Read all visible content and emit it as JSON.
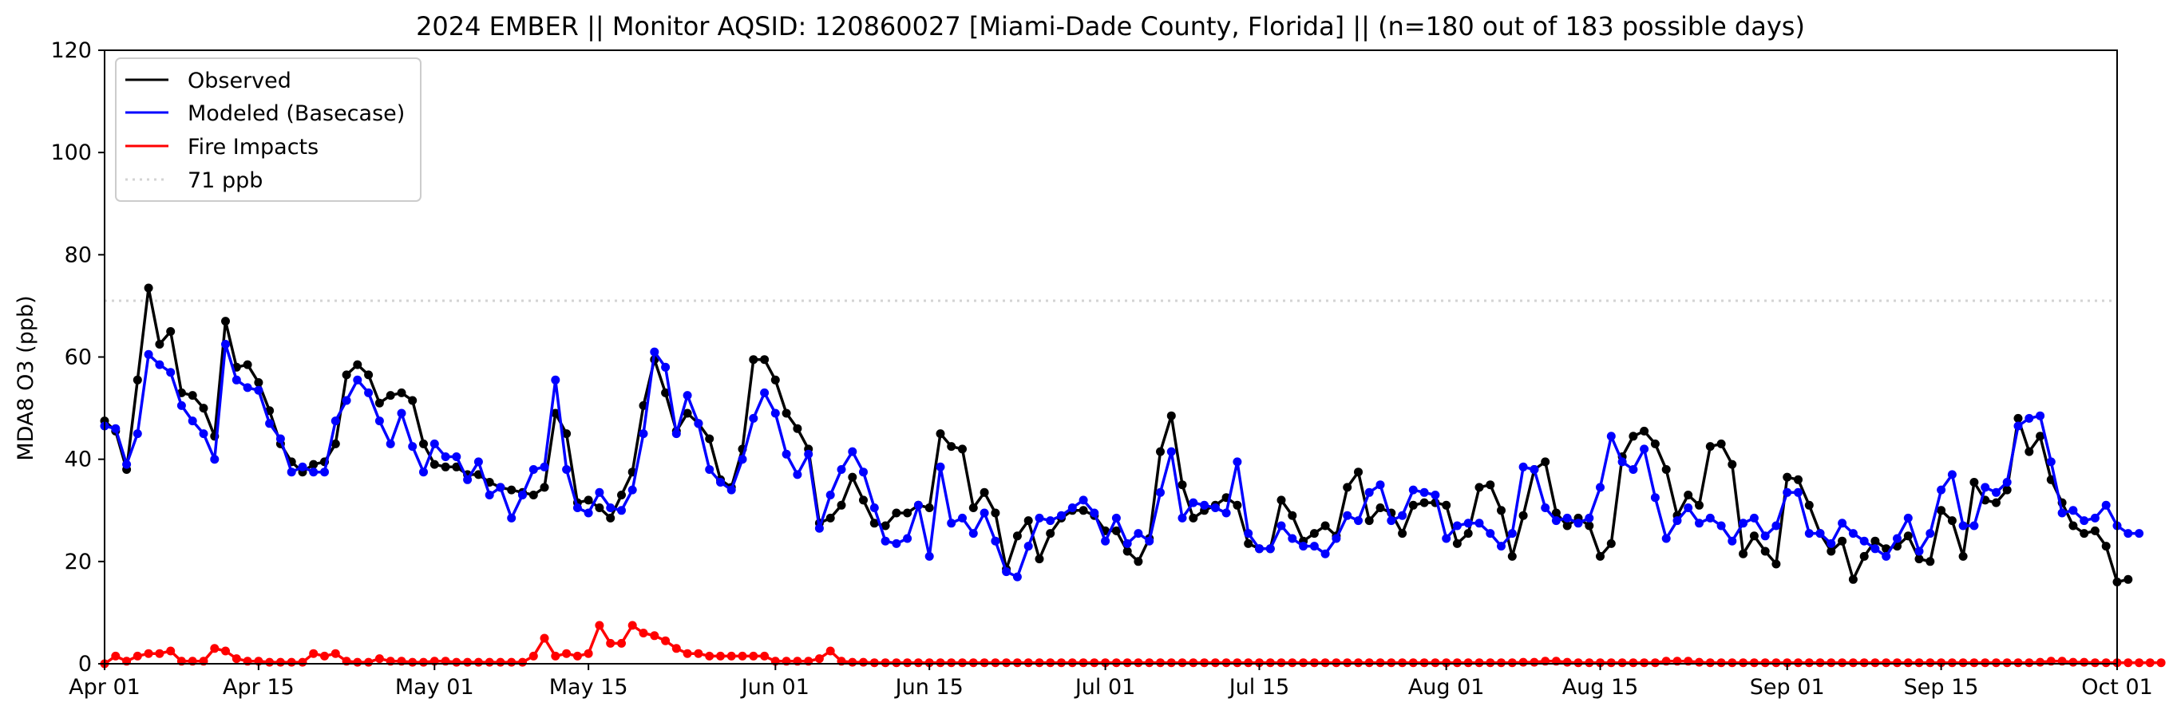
{
  "chart_data": {
    "type": "line",
    "title": "2024 EMBER || Monitor AQSID: 120860027 [Miami-Dade County, Florida] || (n=180 out of 183 possible days)",
    "xlabel": "",
    "ylabel": "MDA8 O3 (ppb)",
    "ylim": [
      0,
      120
    ],
    "xlim": [
      0,
      183
    ],
    "yticks": [
      0,
      20,
      40,
      60,
      80,
      100,
      120
    ],
    "xticks": [
      {
        "day": 0,
        "label": "Apr 01"
      },
      {
        "day": 14,
        "label": "Apr 15"
      },
      {
        "day": 30,
        "label": "May 01"
      },
      {
        "day": 44,
        "label": "May 15"
      },
      {
        "day": 61,
        "label": "Jun 01"
      },
      {
        "day": 75,
        "label": "Jun 15"
      },
      {
        "day": 91,
        "label": "Jul 01"
      },
      {
        "day": 105,
        "label": "Jul 15"
      },
      {
        "day": 122,
        "label": "Aug 01"
      },
      {
        "day": 136,
        "label": "Aug 15"
      },
      {
        "day": 153,
        "label": "Sep 01"
      },
      {
        "day": 167,
        "label": "Sep 15"
      },
      {
        "day": 183,
        "label": "Oct 01"
      }
    ],
    "threshold": {
      "label": "71 ppb",
      "value": 71,
      "color": "#d3d3d3"
    },
    "legend_position": "top-left",
    "series": [
      {
        "name": "Observed",
        "color": "#000000",
        "start_day": 0,
        "values": [
          47.5,
          45.5,
          38,
          55.5,
          73.5,
          62.5,
          65,
          53,
          52.5,
          50,
          44.5,
          67,
          58,
          58.5,
          55,
          49.5,
          43,
          39.5,
          37.5,
          39,
          39.5,
          43,
          56.5,
          58.5,
          56.5,
          51,
          52.5,
          53,
          51.5,
          43,
          39,
          38.5,
          38.5,
          37,
          37,
          35.5,
          34.5,
          34,
          33.5,
          33,
          34.5,
          49,
          45,
          31.5,
          32,
          30.5,
          28.5,
          33,
          37.5,
          50.5,
          59.5,
          53,
          45.5,
          49,
          47,
          44,
          36,
          34.5,
          42,
          59.5,
          59.5,
          55.5,
          49,
          46,
          42,
          27.5,
          28.5,
          31,
          36.5,
          32,
          27.5,
          27,
          29.5,
          29.5,
          31,
          30.5,
          45,
          42.5,
          42,
          30.5,
          33.5,
          29.5,
          18.5,
          25,
          28,
          20.5,
          25.5,
          28.5,
          30,
          30,
          29,
          26,
          26,
          22,
          20,
          24.5,
          41.5,
          48.5,
          35,
          28.5,
          30,
          31,
          32.5,
          31,
          23.5,
          22.5,
          22.5,
          32,
          29,
          24,
          25.5,
          27,
          25,
          34.5,
          37.5,
          28,
          30.5,
          29.5,
          25.5,
          31,
          31.5,
          31.5,
          31,
          23.5,
          25.5,
          34.5,
          35,
          30,
          21,
          29,
          38,
          39.5,
          29.5,
          27,
          28.5,
          27,
          21,
          23.5,
          40.5,
          44.5,
          45.5,
          43,
          38,
          29,
          33,
          31,
          42.5,
          43,
          39,
          21.5,
          25,
          22,
          19.5,
          36.5,
          36,
          31,
          25.5,
          22,
          24,
          16.5,
          21,
          24,
          22.5,
          23,
          25,
          20.5,
          20,
          30,
          28,
          21,
          35.5,
          32,
          31.5,
          34,
          48,
          41.5,
          44.5,
          36,
          31.5,
          27,
          25.5,
          26,
          23,
          16,
          16.5
        ]
      },
      {
        "name": "Modeled (Basecase)",
        "color": "#0000ff",
        "start_day": 0,
        "values": [
          46.5,
          46,
          39,
          45,
          60.5,
          58.5,
          57,
          50.5,
          47.5,
          45,
          40,
          62.5,
          55.5,
          54,
          53.5,
          47,
          44,
          37.5,
          38.5,
          37.5,
          37.5,
          47.5,
          51.5,
          55.5,
          53,
          47.5,
          43,
          49,
          42.5,
          37.5,
          43,
          40.5,
          40.5,
          36,
          39.5,
          33,
          34.5,
          28.5,
          33,
          38,
          38.5,
          55.5,
          38,
          30.5,
          29.5,
          33.5,
          30.5,
          30,
          34,
          45,
          61,
          58,
          45,
          52.5,
          47,
          38,
          35.5,
          34,
          40,
          48,
          53,
          49,
          41,
          37,
          41,
          26.5,
          33,
          38,
          41.5,
          37.5,
          30.5,
          24,
          23.5,
          24.5,
          31,
          21,
          38.5,
          27.5,
          28.5,
          25.5,
          29.5,
          24,
          18,
          17,
          23,
          28.5,
          28,
          29,
          30.5,
          32,
          29.5,
          24,
          28.5,
          23.5,
          25.5,
          24,
          33.5,
          41.5,
          28.5,
          31.5,
          31,
          30.5,
          29.5,
          39.5,
          25.5,
          22.5,
          22.5,
          27,
          24.5,
          23,
          23,
          21.5,
          24.5,
          29,
          28,
          33.5,
          35,
          28,
          29,
          34,
          33.5,
          33,
          24.5,
          27,
          27.5,
          27.5,
          25.5,
          23,
          25.5,
          38.5,
          38,
          30.5,
          28,
          28.5,
          27.5,
          28.5,
          34.5,
          44.5,
          39.5,
          38,
          42,
          32.5,
          24.5,
          28,
          30.5,
          27.5,
          28.5,
          27,
          24,
          27.5,
          28.5,
          25,
          27,
          33.5,
          33.5,
          25.5,
          25.5,
          23.5,
          27.5,
          25.5,
          24,
          22.5,
          21,
          24.5,
          28.5,
          22,
          25.5,
          34,
          37,
          27,
          27,
          34.5,
          33.5,
          35.5,
          46.5,
          48,
          48.5,
          39.5,
          29.5,
          30,
          28,
          28.5,
          31,
          27,
          25.5,
          25.5
        ]
      },
      {
        "name": "Fire Impacts",
        "color": "#ff0000",
        "start_day": 0,
        "values": [
          0,
          1.5,
          0.5,
          1.5,
          2,
          2,
          2.5,
          0.5,
          0.5,
          0.5,
          3,
          2.5,
          1,
          0.5,
          0.5,
          0.3,
          0.3,
          0.3,
          0.3,
          2,
          1.5,
          2,
          0.5,
          0.3,
          0.3,
          1,
          0.5,
          0.5,
          0.3,
          0.3,
          0.5,
          0.5,
          0.3,
          0.3,
          0.3,
          0.3,
          0.3,
          0.3,
          0.3,
          1.5,
          5,
          1.5,
          2,
          1.5,
          2,
          7.5,
          4,
          4,
          7.5,
          6,
          5.5,
          4.5,
          3,
          2,
          2,
          1.5,
          1.5,
          1.5,
          1.5,
          1.5,
          1.5,
          0.5,
          0.5,
          0.5,
          0.5,
          1,
          2.5,
          0.5,
          0.3,
          0.3,
          0.2,
          0.2,
          0.2,
          0.2,
          0.2,
          0.2,
          0.2,
          0.2,
          0.2,
          0.2,
          0.2,
          0.2,
          0.2,
          0.2,
          0.2,
          0.2,
          0.2,
          0.2,
          0.2,
          0.2,
          0.2,
          0.2,
          0.2,
          0.2,
          0.2,
          0.2,
          0.2,
          0.2,
          0.2,
          0.2,
          0.2,
          0.2,
          0.2,
          0.2,
          0.2,
          0.2,
          0.2,
          0.2,
          0.2,
          0.2,
          0.2,
          0.2,
          0.2,
          0.2,
          0.2,
          0.2,
          0.2,
          0.2,
          0.2,
          0.2,
          0.2,
          0.2,
          0.2,
          0.2,
          0.2,
          0.2,
          0.2,
          0.2,
          0.2,
          0.3,
          0.3,
          0.5,
          0.5,
          0.3,
          0.2,
          0.2,
          0.2,
          0.2,
          0.2,
          0.2,
          0.2,
          0.2,
          0.5,
          0.5,
          0.5,
          0.3,
          0.2,
          0.2,
          0.2,
          0.2,
          0.2,
          0.2,
          0.2,
          0.2,
          0.2,
          0.2,
          0.2,
          0.2,
          0.2,
          0.2,
          0.2,
          0.2,
          0.2,
          0.2,
          0.2,
          0.2,
          0.2,
          0.2,
          0.2,
          0.2,
          0.2,
          0.2,
          0.2,
          0.2,
          0.2,
          0.2,
          0.3,
          0.5,
          0.5,
          0.3,
          0.3,
          0.2,
          0.2,
          0.2,
          0.2,
          0.2,
          0.2,
          0.2
        ]
      }
    ]
  }
}
